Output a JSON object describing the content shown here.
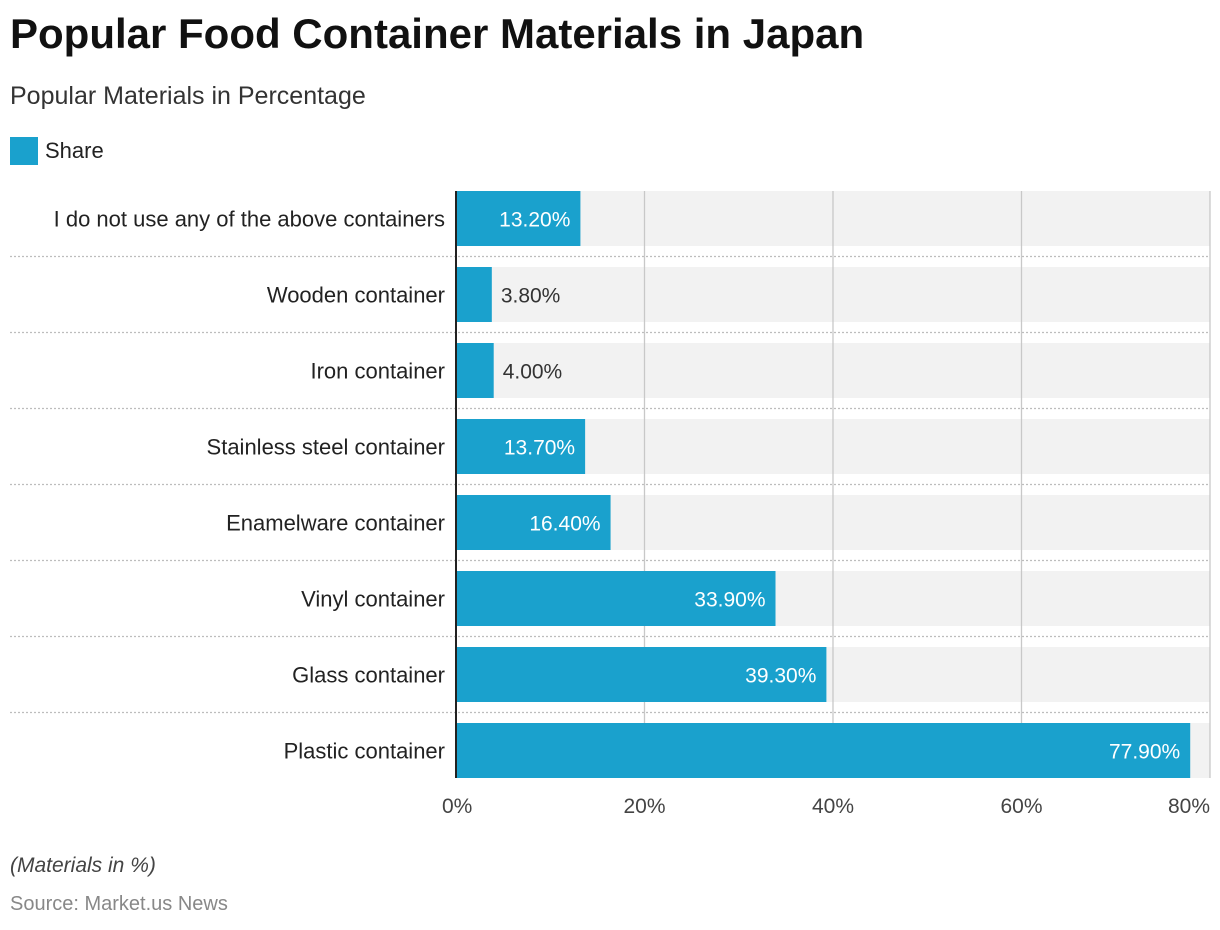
{
  "header": {
    "title": "Popular Food Container Materials in Japan",
    "subtitle": "Popular Materials in Percentage"
  },
  "legend": {
    "label": "Share"
  },
  "footer": {
    "note": "(Materials in %)",
    "source": "Source: Market.us News"
  },
  "colors": {
    "bar": "#1aa1cd",
    "track": "#f2f2f2",
    "grid": "#c8c8c8",
    "axis": "#222222",
    "label_inside": "#ffffff",
    "label_outside": "#333333"
  },
  "chart_data": {
    "type": "bar",
    "orientation": "horizontal",
    "title": "Popular Food Container Materials in Japan",
    "subtitle": "Popular Materials in Percentage",
    "categories": [
      "I do not use any of the above containers",
      "Wooden container",
      "Iron container",
      "Stainless steel container",
      "Enamelware container",
      "Vinyl container",
      "Glass container",
      "Plastic container"
    ],
    "series": [
      {
        "name": "Share",
        "values": [
          13.2,
          3.8,
          4.0,
          13.7,
          16.4,
          33.9,
          39.3,
          77.9
        ],
        "labels": [
          "13.20%",
          "3.80%",
          "4.00%",
          "13.70%",
          "16.40%",
          "33.90%",
          "39.30%",
          "77.90%"
        ]
      }
    ],
    "xlim": [
      0,
      80
    ],
    "xticks": [
      "0%",
      "20%",
      "40%",
      "60%",
      "80%"
    ],
    "xtick_values": [
      0,
      20,
      40,
      60,
      80
    ],
    "grid": true,
    "legend_position": "top-left"
  }
}
